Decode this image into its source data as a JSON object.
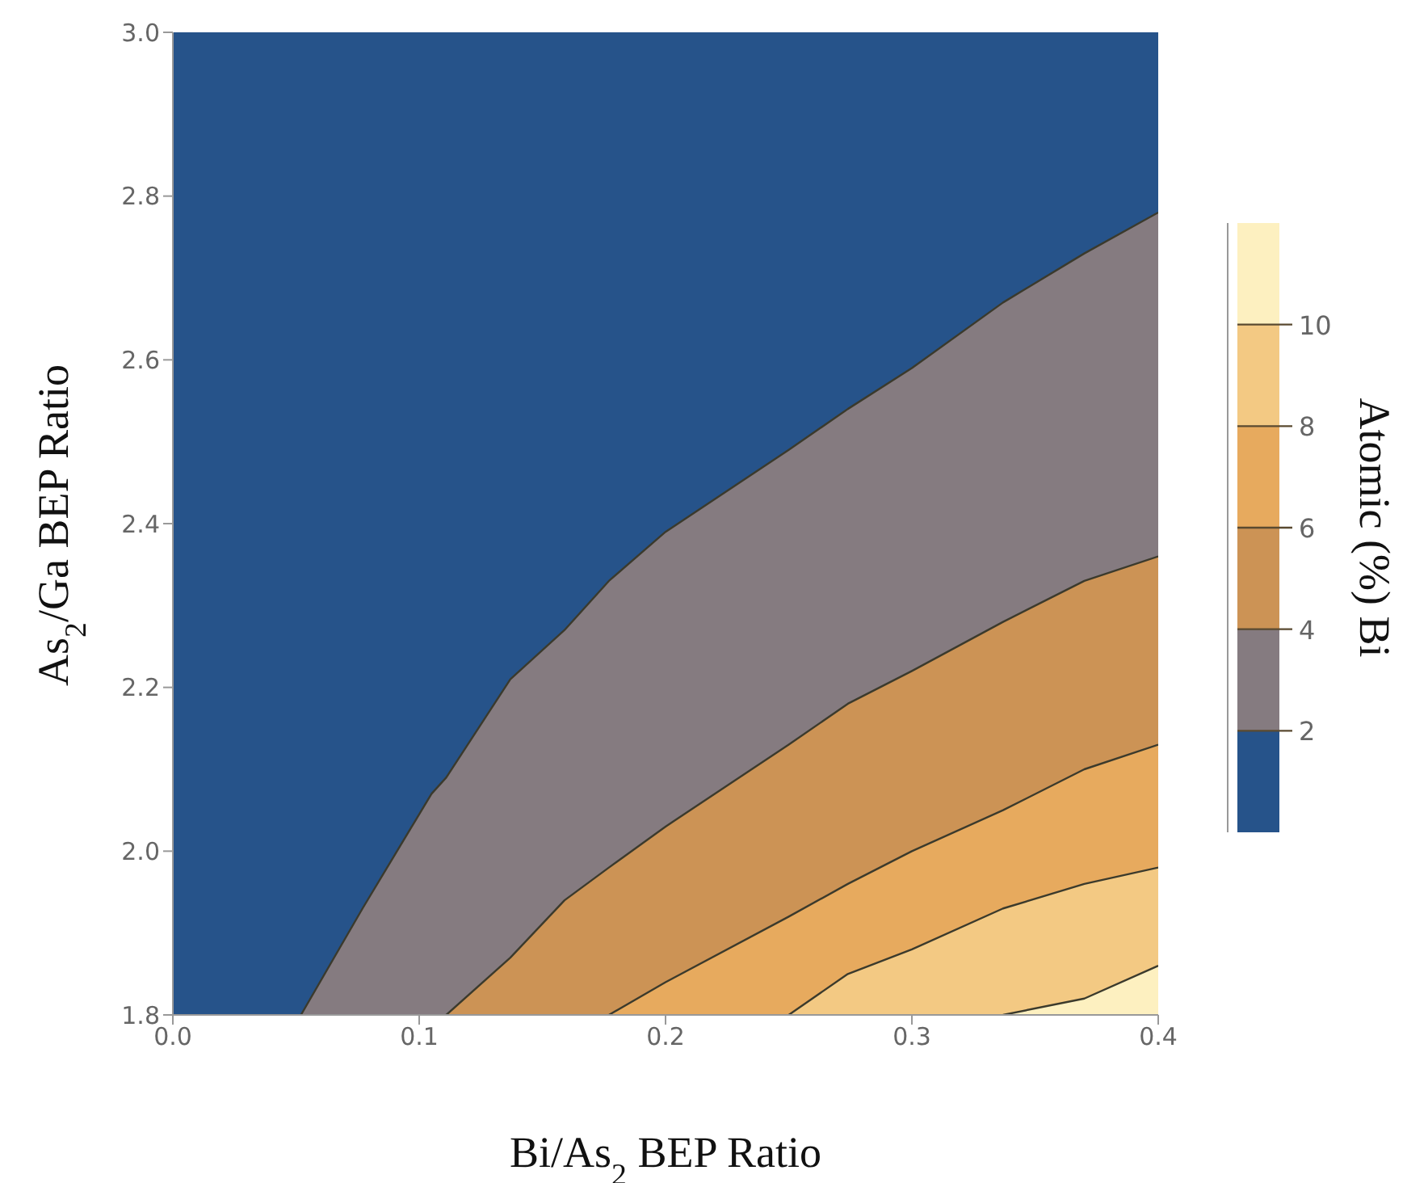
{
  "chart_data": {
    "type": "area",
    "xlabel": "Bi/As$_{2}$ BEP Ratio",
    "ylabel": "As$_{2}$/Ga BEP Ratio",
    "clabel": "Atomic (%) Bi",
    "xlim": [
      0,
      0.4
    ],
    "xticks": [
      {
        "value": 0,
        "label": "0.0"
      },
      0.1,
      0.2,
      0.3,
      0.4
    ],
    "ylim": [
      1.8,
      3.0
    ],
    "yticks": [
      1.8,
      {
        "value": 2,
        "label": "2.0"
      },
      2.2,
      2.4,
      2.6,
      2.8,
      {
        "value": 3,
        "label": "3.0"
      }
    ],
    "clim": [
      0,
      12
    ],
    "cticks": [
      2,
      4,
      6,
      8,
      10
    ],
    "series": [
      {
        "color": "#26538a",
        "x": [
          0,
          0.052,
          0.077,
          0.105,
          0.111,
          0.137,
          0.159,
          0.177,
          0.2,
          0.25,
          0.274,
          0.3,
          0.337,
          0.37,
          0.4
        ],
        "values": [
          3.0,
          3.0,
          3.0,
          3.0,
          3.0,
          3.0,
          3.0,
          3.0,
          3.0,
          3.0,
          3.0,
          3.0,
          3.0,
          3.0,
          3.0
        ]
      },
      {
        "color": "#857b80",
        "x": [
          0.052,
          0.077,
          0.105,
          0.111,
          0.137,
          0.159,
          0.177,
          0.2,
          0.25,
          0.274,
          0.3,
          0.337,
          0.37,
          0.4
        ],
        "values": [
          1.8,
          1.93,
          2.07,
          2.09,
          2.21,
          2.27,
          2.33,
          2.39,
          2.49,
          2.54,
          2.59,
          2.67,
          2.73,
          2.78
        ]
      },
      {
        "color": "#cc9355",
        "x": [
          0.111,
          0.137,
          0.159,
          0.177,
          0.2,
          0.25,
          0.274,
          0.3,
          0.337,
          0.37,
          0.4
        ],
        "values": [
          1.8,
          1.87,
          1.94,
          1.98,
          2.03,
          2.13,
          2.18,
          2.22,
          2.28,
          2.33,
          2.36
        ]
      },
      {
        "color": "#e7aa5e",
        "x": [
          0.177,
          0.2,
          0.25,
          0.274,
          0.3,
          0.337,
          0.37,
          0.4
        ],
        "values": [
          1.8,
          1.84,
          1.92,
          1.96,
          2.0,
          2.05,
          2.1,
          2.13
        ]
      },
      {
        "color": "#f3c983",
        "x": [
          0.25,
          0.274,
          0.3,
          0.337,
          0.37,
          0.4
        ],
        "values": [
          1.8,
          1.85,
          1.88,
          1.93,
          1.96,
          1.98
        ]
      },
      {
        "color": "#fdf0c0",
        "x": [
          0.337,
          0.37,
          0.4
        ],
        "values": [
          1.8,
          1.82,
          1.86
        ]
      }
    ]
  }
}
